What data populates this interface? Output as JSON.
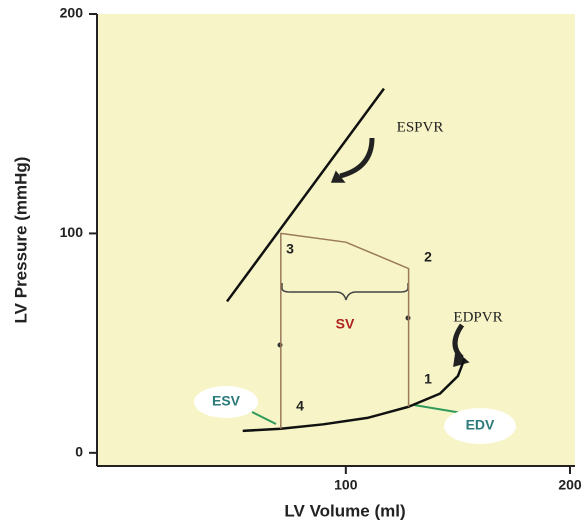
{
  "chart_data": {
    "type": "line",
    "xlabel": "LV Volume (ml)",
    "ylabel": "LV Pressure (mmHg)",
    "xlim": [
      -11,
      200
    ],
    "ylim": [
      -6,
      200
    ],
    "xticks": [
      100,
      200
    ],
    "yticks": [
      0,
      100,
      200
    ],
    "series": [
      {
        "name": "ESPVR",
        "color": "#111111",
        "x": [
          47,
          117
        ],
        "values": [
          69,
          166
        ]
      },
      {
        "name": "EDPVR",
        "color": "#111111",
        "x": [
          54,
          71,
          90,
          110,
          128,
          142,
          150,
          153
        ],
        "values": [
          10,
          11,
          13,
          16,
          21,
          27,
          35,
          43
        ]
      },
      {
        "color": "#9a7a5a",
        "x": [
          71,
          71,
          100,
          128,
          128
        ],
        "values": [
          11,
          100,
          96,
          84,
          21
        ]
      }
    ],
    "annotations": [
      "SV",
      "ESV",
      "EDV",
      "1",
      "2",
      "3",
      "4"
    ]
  }
}
